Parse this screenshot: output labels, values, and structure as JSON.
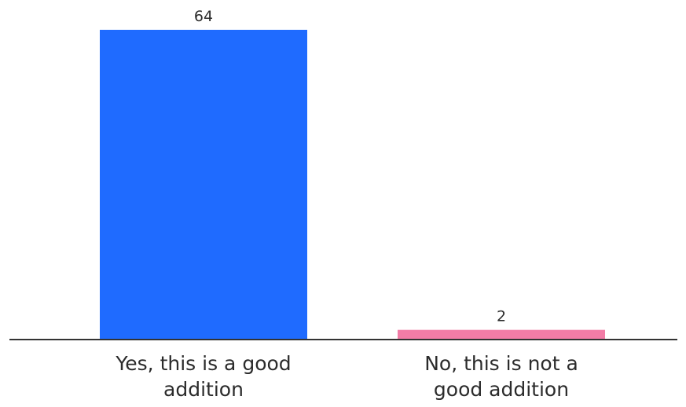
{
  "chart_data": {
    "type": "bar",
    "categories": [
      [
        "Yes, this is a good",
        "addition"
      ],
      [
        "No, this is not a",
        "good addition"
      ]
    ],
    "values": [
      64,
      2
    ],
    "data_labels": [
      "64",
      "2"
    ],
    "colors": [
      "#1f6bff",
      "#f27ca6"
    ],
    "axis_color": "#333333",
    "ylim": [
      0,
      64
    ],
    "title": "",
    "xlabel": "",
    "ylabel": "",
    "grid": false,
    "legend": "none"
  }
}
